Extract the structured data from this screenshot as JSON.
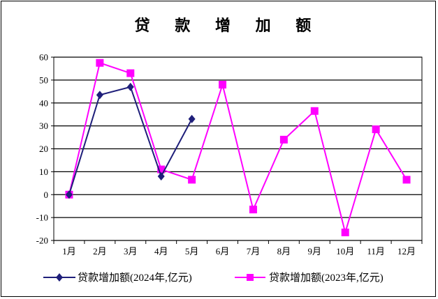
{
  "chart_data": {
    "type": "line",
    "title": "贷 款 增 加 额",
    "categories": [
      "1月",
      "2月",
      "3月",
      "4月",
      "5月",
      "6月",
      "7月",
      "8月",
      "9月",
      "10月",
      "11月",
      "12月"
    ],
    "ylim": [
      -20,
      60
    ],
    "yticks": [
      -20,
      -10,
      0,
      10,
      20,
      30,
      40,
      50,
      60
    ],
    "grid": true,
    "legend_position": "bottom",
    "series": [
      {
        "name": "贷款增加额(2024年,亿元)",
        "color": "#1f1f7a",
        "marker": "diamond",
        "values": [
          0,
          43.5,
          47,
          8,
          33,
          null,
          null,
          null,
          null,
          null,
          null,
          null
        ]
      },
      {
        "name": "贷款增加额(2023年,亿元)",
        "color": "#ff00ff",
        "marker": "square",
        "values": [
          0,
          57.5,
          53,
          11,
          6.5,
          48,
          -6.5,
          24,
          36.5,
          -16.5,
          28.5,
          6.5
        ]
      }
    ]
  }
}
